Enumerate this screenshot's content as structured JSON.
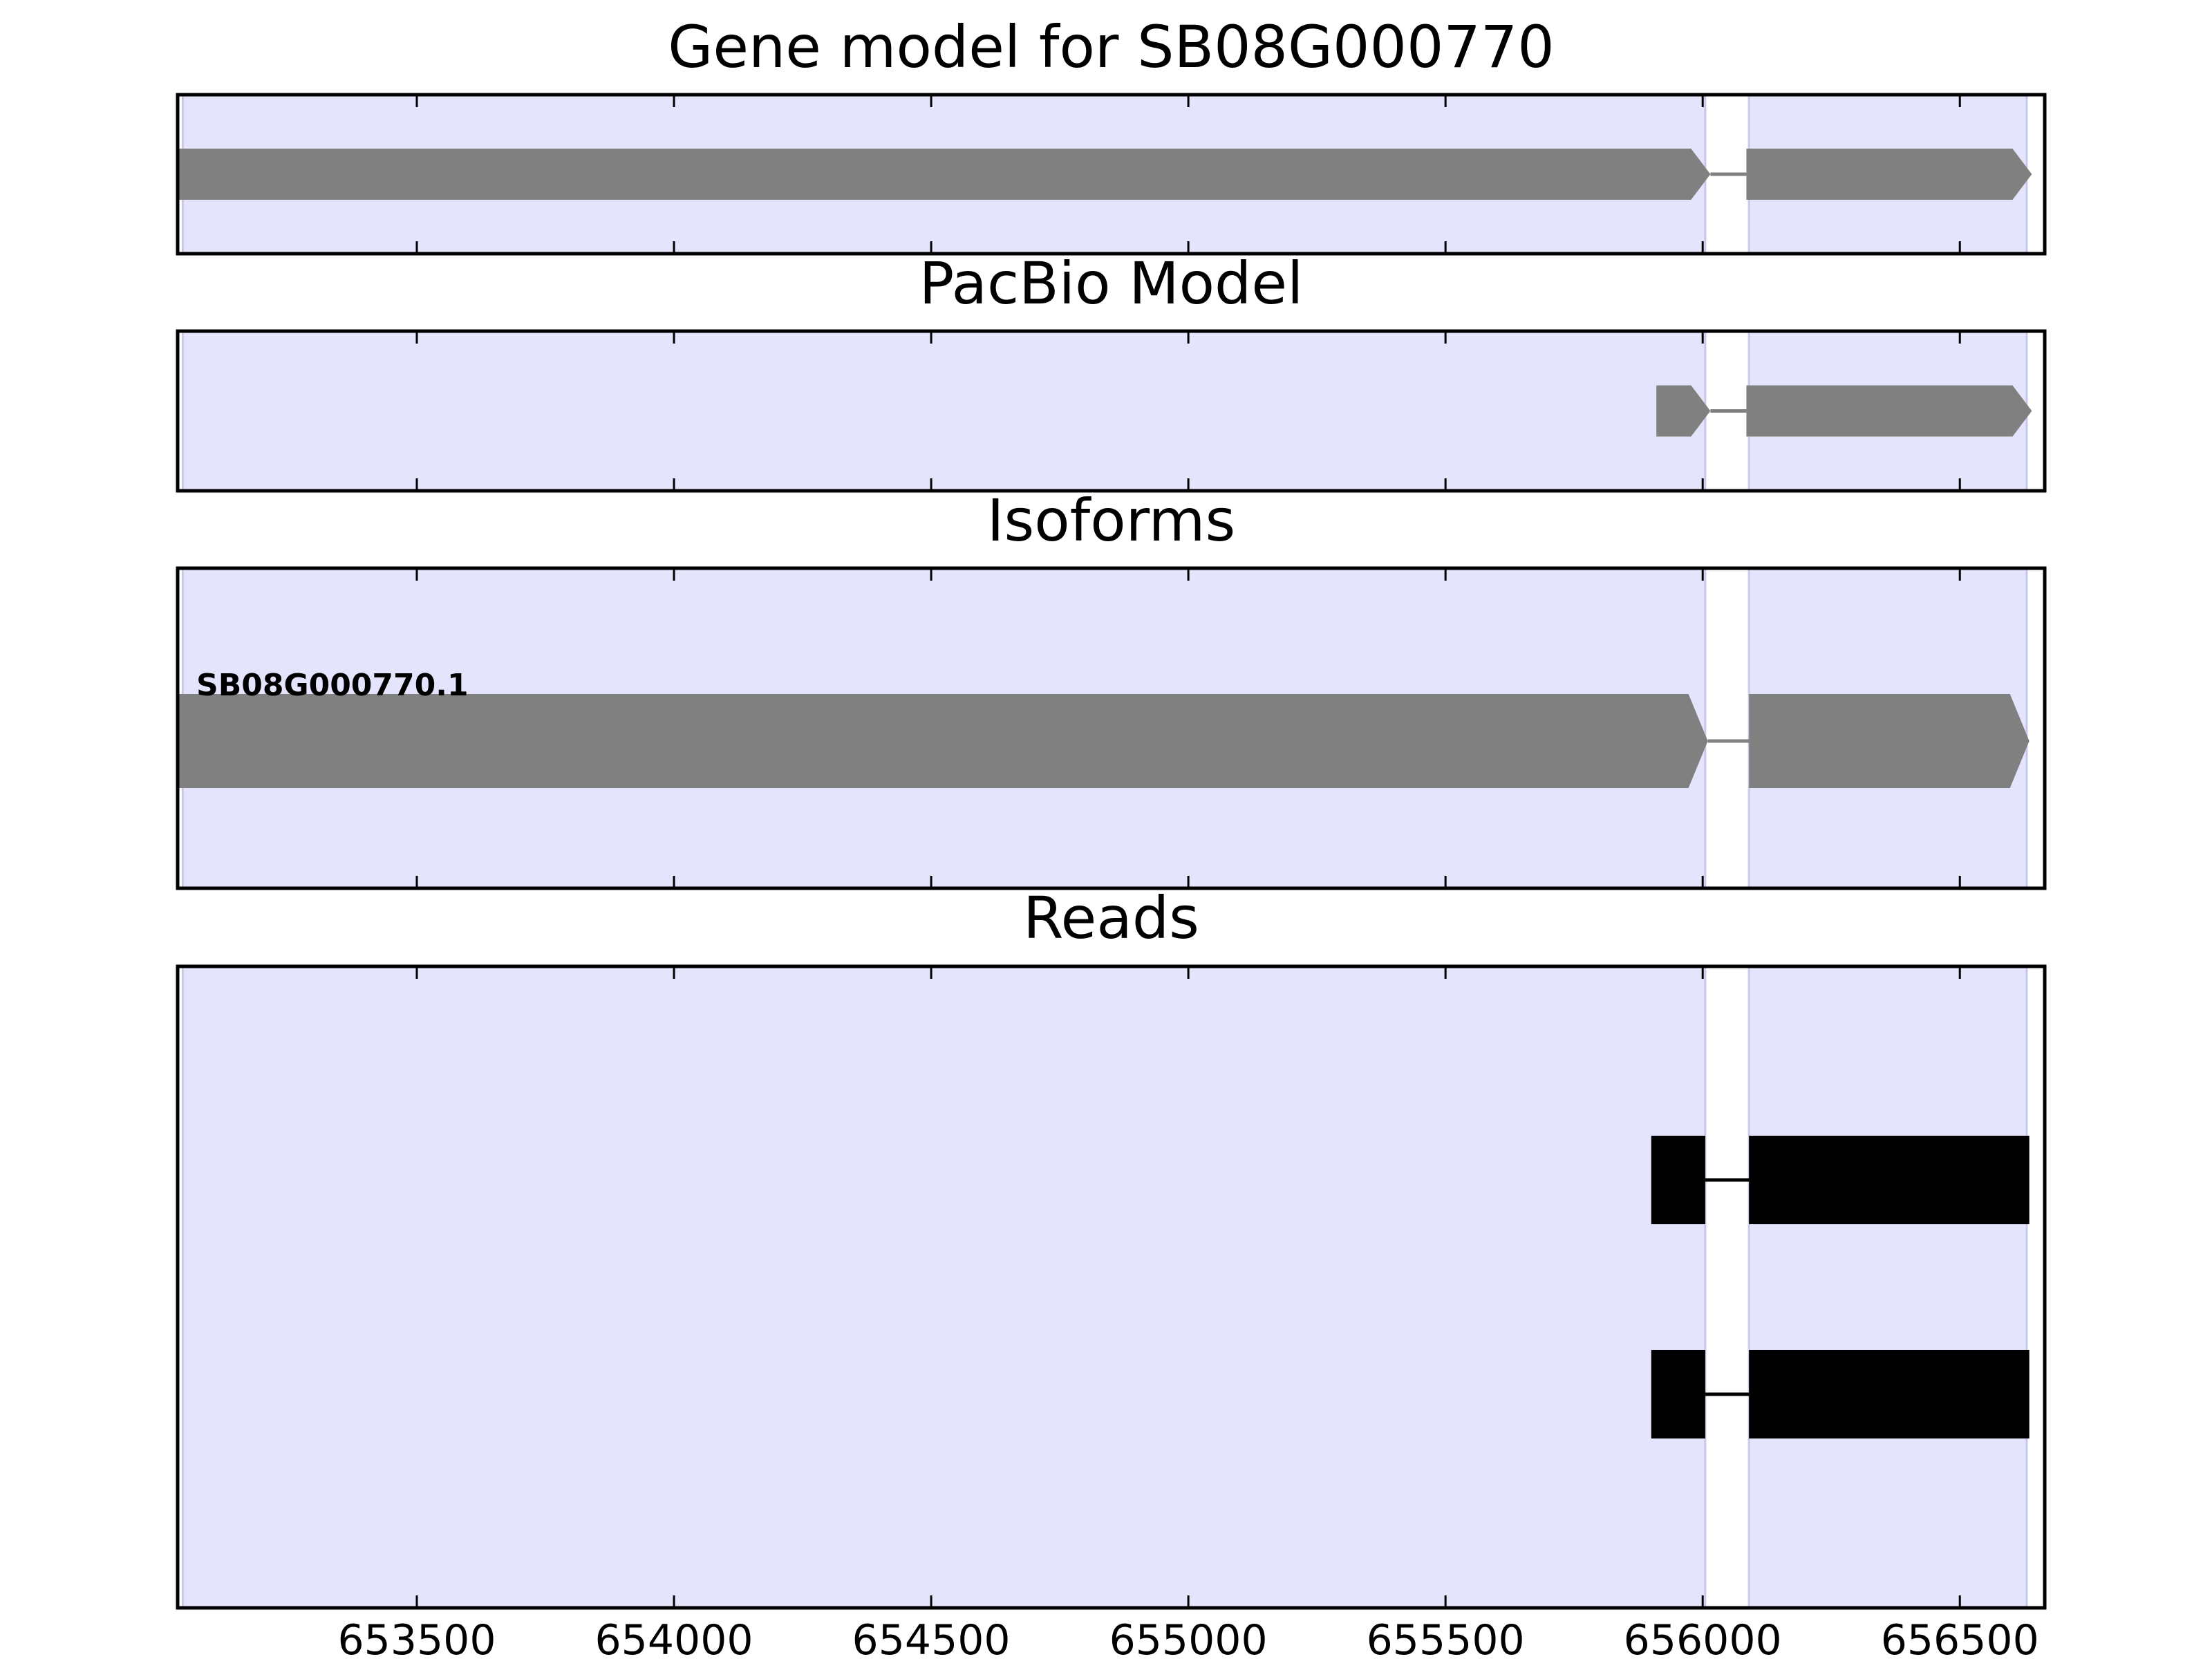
{
  "figure": {
    "panels": [
      {
        "id": "gene-model",
        "title": "Gene model for SB08G000770",
        "features": [
          {
            "kind": "exon",
            "start": 653035,
            "end": 656015,
            "arrow": true,
            "color": "#808080"
          },
          {
            "kind": "intron",
            "start": 656015,
            "end": 656085,
            "color": "#808080"
          },
          {
            "kind": "exon",
            "start": 656085,
            "end": 656640,
            "arrow": true,
            "color": "#808080"
          }
        ]
      },
      {
        "id": "pacbio-model",
        "title": "PacBio Model",
        "features": [
          {
            "kind": "exon",
            "start": 655910,
            "end": 656015,
            "arrow": true,
            "color": "#808080"
          },
          {
            "kind": "intron",
            "start": 656015,
            "end": 656085,
            "color": "#808080"
          },
          {
            "kind": "exon",
            "start": 656085,
            "end": 656640,
            "arrow": true,
            "color": "#808080"
          }
        ]
      },
      {
        "id": "isoforms",
        "title": "Isoforms",
        "isoform_label": "SB08G000770.1",
        "features": [
          {
            "kind": "exon",
            "start": 653035,
            "end": 656010,
            "arrow": true,
            "color": "#808080"
          },
          {
            "kind": "intron",
            "start": 656010,
            "end": 656090,
            "color": "#808080"
          },
          {
            "kind": "exon",
            "start": 656090,
            "end": 656635,
            "arrow": true,
            "color": "#808080"
          }
        ]
      },
      {
        "id": "reads",
        "title": "Reads",
        "reads": [
          [
            {
              "kind": "exon",
              "start": 655900,
              "end": 656005
            },
            {
              "kind": "intron",
              "start": 656005,
              "end": 656090
            },
            {
              "kind": "exon",
              "start": 656090,
              "end": 656635
            }
          ],
          [
            {
              "kind": "exon",
              "start": 655900,
              "end": 656005
            },
            {
              "kind": "intron",
              "start": 656005,
              "end": 656090
            },
            {
              "kind": "exon",
              "start": 656090,
              "end": 656635
            }
          ]
        ]
      }
    ],
    "x_axis": {
      "range": [
        653035,
        656665
      ],
      "ticks": [
        653500,
        654000,
        654500,
        655000,
        655500,
        656000,
        656500
      ],
      "tick_labels": [
        "653500",
        "654000",
        "654500",
        "655000",
        "655500",
        "656000",
        "656500"
      ]
    },
    "highlight_regions": [
      [
        653045,
        656005
      ],
      [
        656090,
        656630
      ]
    ],
    "colors": {
      "highlight": "#e4e4fd",
      "highlight_edge": "#c8c8ee",
      "model": "#808080",
      "read": "#000000",
      "frame": "#000000"
    }
  }
}
